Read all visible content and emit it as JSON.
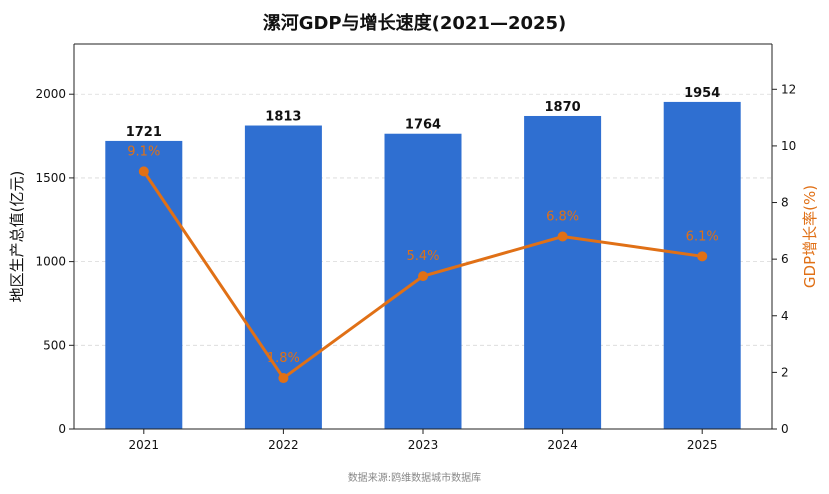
{
  "chart_data": {
    "type": "bar",
    "title": "漯河GDP与增长速度(2021—2025)",
    "categories": [
      "2021",
      "2022",
      "2023",
      "2024",
      "2025"
    ],
    "series": [
      {
        "name": "地区生产总值(亿元)",
        "type": "bar",
        "axis": "left",
        "values": [
          1721,
          1813,
          1764,
          1870,
          1954
        ],
        "labels": [
          "1721",
          "1813",
          "1764",
          "1870",
          "1954"
        ],
        "color": "#2f6fd1"
      },
      {
        "name": "GDP增长率(%)",
        "type": "line",
        "axis": "right",
        "values": [
          9.1,
          1.8,
          5.4,
          6.8,
          6.1
        ],
        "labels": [
          "9.1%",
          "1.8%",
          "5.4%",
          "6.8%",
          "6.1%"
        ],
        "color": "#e07016"
      }
    ],
    "ylabel": "地区生产总值(亿元)",
    "ylim": [
      0,
      2300
    ],
    "yticks": [
      0,
      500,
      1000,
      1500,
      2000
    ],
    "y2label": "GDP增长率(%)",
    "y2lim": [
      0,
      13.6
    ],
    "y2ticks": [
      0,
      2,
      4,
      6,
      8,
      10,
      12
    ],
    "grid": "horizontal dashed",
    "source": "数据来源:鸥维数据城市数据库"
  }
}
